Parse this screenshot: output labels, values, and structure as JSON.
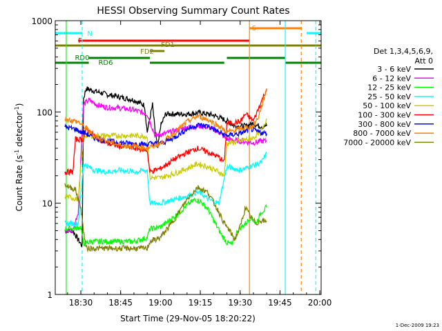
{
  "chart_data": {
    "type": "line",
    "title": "HESSI Observing Summary Count Rates",
    "xlabel": "Start Time (29-Nov-05 18:20:22)",
    "ylabel": "Count Rate (s⁻¹ detector⁻¹)",
    "ylabel_main": "Count Rate (s",
    "ylabel_unit": "detector",
    "ylabel_close": ")",
    "y_scale": "log",
    "ylim": [
      1,
      1000
    ],
    "xlim": [
      "18:20:22",
      "20:00:30"
    ],
    "x_ticks": [
      "18:30",
      "18:45",
      "19:00",
      "19:15",
      "19:30",
      "19:45",
      "20:00"
    ],
    "y_ticks": [
      "1",
      "10",
      "100",
      "1000"
    ],
    "legend_header": [
      "Det 1,3,4,5,6,9,",
      "Att 0"
    ],
    "legend_placement": "right",
    "footer_date": "1-Dec-2009 19:23",
    "series": [
      {
        "name": "3 - 6 keV",
        "color": "#000000",
        "points": [
          [
            "18:24",
            5
          ],
          [
            "18:27",
            5
          ],
          [
            "18:29",
            4
          ],
          [
            "18:30:30",
            3.4
          ],
          [
            "18:31",
            140
          ],
          [
            "18:32",
            180
          ],
          [
            "18:35",
            170
          ],
          [
            "18:40",
            155
          ],
          [
            "18:45",
            145
          ],
          [
            "18:50",
            135
          ],
          [
            "18:54",
            118
          ],
          [
            "18:55",
            60
          ],
          [
            "18:57",
            120
          ],
          [
            "18:58",
            60
          ],
          [
            "18:59",
            40
          ],
          [
            "19:00",
            70
          ],
          [
            "19:02",
            95
          ],
          [
            "19:05",
            95
          ],
          [
            "19:10",
            95
          ],
          [
            "19:15",
            98
          ],
          [
            "19:20",
            92
          ],
          [
            "19:25",
            80
          ],
          [
            "19:28",
            70
          ],
          [
            "19:32",
            70
          ],
          [
            "19:35",
            75
          ],
          [
            "19:37",
            70
          ],
          [
            "19:40",
            70
          ]
        ]
      },
      {
        "name": "6 - 12 keV",
        "color": "#ff00ff",
        "points": [
          [
            "18:24",
            5
          ],
          [
            "18:27",
            5
          ],
          [
            "18:29",
            8
          ],
          [
            "18:31",
            120
          ],
          [
            "18:33",
            135
          ],
          [
            "18:36",
            120
          ],
          [
            "18:40",
            112
          ],
          [
            "18:45",
            110
          ],
          [
            "18:50",
            105
          ],
          [
            "18:55",
            95
          ],
          [
            "18:58",
            55
          ],
          [
            "19:02",
            58
          ],
          [
            "19:05",
            62
          ],
          [
            "19:10",
            68
          ],
          [
            "19:15",
            70
          ],
          [
            "19:18",
            68
          ],
          [
            "19:22",
            60
          ],
          [
            "19:25",
            50
          ],
          [
            "19:30",
            48
          ],
          [
            "19:35",
            46
          ],
          [
            "19:38",
            48
          ],
          [
            "19:40",
            48
          ]
        ]
      },
      {
        "name": "12 - 25 keV",
        "color": "#00ff00",
        "points": [
          [
            "18:24",
            5.3
          ],
          [
            "18:28",
            5.3
          ],
          [
            "18:30",
            5.5
          ],
          [
            "18:31",
            3.6
          ],
          [
            "18:34",
            3.8
          ],
          [
            "18:40",
            3.8
          ],
          [
            "18:45",
            3.8
          ],
          [
            "18:50",
            3.8
          ],
          [
            "18:55",
            4.2
          ],
          [
            "18:56",
            5.2
          ],
          [
            "19:00",
            5.5
          ],
          [
            "19:05",
            7
          ],
          [
            "19:10",
            9.5
          ],
          [
            "19:13",
            11
          ],
          [
            "19:15",
            10.5
          ],
          [
            "19:18",
            8.5
          ],
          [
            "19:20",
            6.5
          ],
          [
            "19:23",
            4.5
          ],
          [
            "19:25",
            3.7
          ],
          [
            "19:27",
            3.5
          ],
          [
            "19:29",
            5
          ],
          [
            "19:32",
            6
          ],
          [
            "19:34",
            7
          ],
          [
            "19:36",
            6
          ],
          [
            "19:38",
            8
          ],
          [
            "19:40",
            9
          ]
        ]
      },
      {
        "name": "25 - 50 keV",
        "color": "#00ffff",
        "points": [
          [
            "18:24",
            6
          ],
          [
            "18:29",
            6
          ],
          [
            "18:31",
            27
          ],
          [
            "18:35",
            23
          ],
          [
            "18:40",
            22
          ],
          [
            "18:45",
            23
          ],
          [
            "18:50",
            22
          ],
          [
            "18:55",
            23
          ],
          [
            "18:56",
            10
          ],
          [
            "19:00",
            10
          ],
          [
            "19:05",
            11
          ],
          [
            "19:10",
            12
          ],
          [
            "19:13",
            13
          ],
          [
            "19:15",
            13
          ],
          [
            "19:18",
            11
          ],
          [
            "19:22",
            10
          ],
          [
            "19:25",
            25
          ],
          [
            "19:30",
            23
          ],
          [
            "19:35",
            26
          ],
          [
            "19:38",
            28
          ],
          [
            "19:40",
            35
          ]
        ]
      },
      {
        "name": "50 - 100 keV",
        "color": "#cccc00",
        "points": [
          [
            "18:24",
            12
          ],
          [
            "18:29",
            11
          ],
          [
            "18:31",
            55
          ],
          [
            "18:35",
            55
          ],
          [
            "18:40",
            55
          ],
          [
            "18:45",
            55
          ],
          [
            "18:50",
            55
          ],
          [
            "18:55",
            54
          ],
          [
            "18:56",
            19
          ],
          [
            "19:00",
            19
          ],
          [
            "19:05",
            21
          ],
          [
            "19:10",
            24
          ],
          [
            "19:14",
            27
          ],
          [
            "19:18",
            25
          ],
          [
            "19:22",
            22
          ],
          [
            "19:24",
            20
          ],
          [
            "19:25",
            45
          ],
          [
            "19:30",
            48
          ],
          [
            "19:35",
            52
          ],
          [
            "19:38",
            62
          ],
          [
            "19:40",
            85
          ]
        ]
      },
      {
        "name": "100 - 300 keV",
        "color": "#ff0000",
        "points": [
          [
            "18:24",
            22
          ],
          [
            "18:27",
            22
          ],
          [
            "18:28",
            50
          ],
          [
            "18:31",
            50
          ],
          [
            "18:32",
            65
          ],
          [
            "18:36",
            52
          ],
          [
            "18:40",
            45
          ],
          [
            "18:45",
            42
          ],
          [
            "18:50",
            40
          ],
          [
            "18:55",
            38
          ],
          [
            "18:56",
            22
          ],
          [
            "19:00",
            24
          ],
          [
            "19:05",
            30
          ],
          [
            "19:10",
            36
          ],
          [
            "19:14",
            40
          ],
          [
            "19:18",
            36
          ],
          [
            "19:22",
            32
          ],
          [
            "19:24",
            28
          ],
          [
            "19:25",
            75
          ],
          [
            "19:30",
            78
          ],
          [
            "19:32",
            95
          ],
          [
            "19:35",
            80
          ],
          [
            "19:38",
            130
          ],
          [
            "19:40",
            180
          ]
        ]
      },
      {
        "name": "300 - 800 keV",
        "color": "#0000ff",
        "points": [
          [
            "18:24",
            68
          ],
          [
            "18:28",
            65
          ],
          [
            "18:30",
            60
          ],
          [
            "18:31",
            60
          ],
          [
            "18:35",
            52
          ],
          [
            "18:40",
            48
          ],
          [
            "18:45",
            46
          ],
          [
            "18:50",
            45
          ],
          [
            "18:55",
            44
          ],
          [
            "18:56",
            45
          ],
          [
            "19:00",
            45
          ],
          [
            "19:05",
            52
          ],
          [
            "19:10",
            65
          ],
          [
            "19:14",
            72
          ],
          [
            "19:18",
            70
          ],
          [
            "19:22",
            60
          ],
          [
            "19:25",
            55
          ],
          [
            "19:30",
            58
          ],
          [
            "19:34",
            65
          ],
          [
            "19:37",
            60
          ],
          [
            "19:40",
            58
          ]
        ]
      },
      {
        "name": "800 - 7000 keV",
        "color": "#ff8000",
        "points": [
          [
            "18:24",
            85
          ],
          [
            "18:27",
            80
          ],
          [
            "18:29",
            78
          ],
          [
            "18:31",
            70
          ],
          [
            "18:35",
            55
          ],
          [
            "18:40",
            48
          ],
          [
            "18:45",
            43
          ],
          [
            "18:50",
            42
          ],
          [
            "18:55",
            40
          ],
          [
            "19:00",
            45
          ],
          [
            "19:05",
            58
          ],
          [
            "19:10",
            78
          ],
          [
            "19:14",
            90
          ],
          [
            "19:18",
            82
          ],
          [
            "19:22",
            70
          ],
          [
            "19:25",
            60
          ],
          [
            "19:30",
            65
          ],
          [
            "19:35",
            70
          ],
          [
            "19:37",
            90
          ],
          [
            "19:40",
            180
          ]
        ]
      },
      {
        "name": "7000 - 20000 keV",
        "color": "#808000",
        "points": [
          [
            "18:24",
            16
          ],
          [
            "18:28",
            14
          ],
          [
            "18:30",
            9
          ],
          [
            "18:31",
            5
          ],
          [
            "18:32",
            3.2
          ],
          [
            "18:35",
            3.2
          ],
          [
            "18:40",
            3.2
          ],
          [
            "18:45",
            3.2
          ],
          [
            "18:50",
            3.2
          ],
          [
            "18:55",
            3.2
          ],
          [
            "18:56",
            3.8
          ],
          [
            "19:00",
            4.2
          ],
          [
            "19:05",
            6.5
          ],
          [
            "19:10",
            11
          ],
          [
            "19:14",
            15
          ],
          [
            "19:18",
            13
          ],
          [
            "19:22",
            8
          ],
          [
            "19:24",
            6
          ],
          [
            "19:26",
            5
          ],
          [
            "19:28",
            4
          ],
          [
            "19:30",
            5.5
          ],
          [
            "19:32",
            9
          ],
          [
            "19:34",
            7
          ],
          [
            "19:36",
            6
          ],
          [
            "19:38",
            6.5
          ],
          [
            "19:40",
            6.2
          ]
        ]
      }
    ],
    "flag_bars": [
      {
        "label": "N",
        "color": "#00ffff",
        "segments": [
          [
            "18:20:22",
            "18:30:30"
          ],
          [
            "19:55",
            "20:00:30"
          ]
        ]
      },
      {
        "label": "S",
        "color": "#ff8000",
        "segments": [
          [
            "19:33:30",
            "19:53"
          ]
        ]
      },
      {
        "label": "F",
        "color": "#ff0000",
        "segments": [
          [
            "18:29",
            "19:33:30"
          ]
        ]
      },
      {
        "label": "FD1",
        "color": "#808000",
        "segments": [
          [
            "18:20:22",
            "20:00:30"
          ]
        ]
      },
      {
        "label": "FD2",
        "color": "#808000",
        "segments": [
          [
            "18:56",
            "19:01:30"
          ]
        ]
      },
      {
        "label": "RD0",
        "color": "#008000",
        "segments": [
          [
            "18:33",
            "18:56"
          ],
          [
            "19:25",
            "19:47"
          ]
        ]
      },
      {
        "label": "RD6",
        "color": "#008000",
        "segments": [
          [
            "18:20:22",
            "18:33"
          ],
          [
            "18:56",
            "19:24"
          ],
          [
            "19:47",
            "20:00:30"
          ]
        ]
      }
    ],
    "event_lines": [
      {
        "time": "18:24:30",
        "color": "#00ff00",
        "style": "solid"
      },
      {
        "time": "18:30:30",
        "color": "#00ffff",
        "style": "dashed"
      },
      {
        "time": "19:33:30",
        "color": "#ff8000",
        "style": "solid"
      },
      {
        "time": "19:47",
        "color": "#00ffff",
        "style": "solid"
      },
      {
        "time": "19:53",
        "color": "#ff8000",
        "style": "dashed"
      },
      {
        "time": "19:58:30",
        "color": "#00ffff",
        "style": "dashed"
      }
    ]
  }
}
